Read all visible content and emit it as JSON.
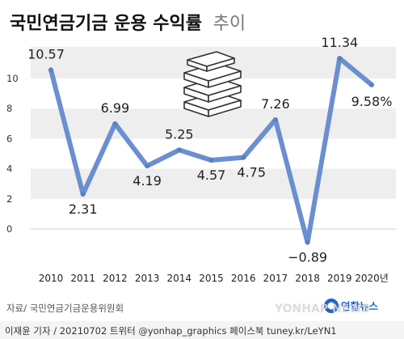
{
  "title_main": "국민연금기금 운용 수익률",
  "title_suffix": "추이",
  "source": "자료/ 국민연금기금운용위원회",
  "credit": "이재윤 기자 / 20210702  트위터 @yonhap_graphics  페이스북 tuney.kr/LeYN1",
  "watermark": "YONHAP NEWS",
  "logo_text": "연합뉴스",
  "colors": {
    "line": "#6b8fd0",
    "marker": "#5a7fc4",
    "band": "#eeeeee",
    "title": "#111111",
    "suffix": "#777777"
  },
  "chart_data": {
    "type": "line",
    "title": "국민연금기금 운용 수익률 추이",
    "categories": [
      "2010",
      "2011",
      "2012",
      "2013",
      "2014",
      "2015",
      "2016",
      "2017",
      "2018",
      "2019",
      "2020년"
    ],
    "series": [
      {
        "values": [
          10.57,
          2.31,
          6.99,
          4.19,
          5.25,
          4.57,
          4.75,
          7.26,
          -0.89,
          11.34,
          9.58
        ],
        "labels": [
          "10.57",
          "2.31",
          "6.99",
          "4.19",
          "5.25",
          "4.57",
          "4.75",
          "7.26",
          "−0.89",
          "11.34",
          "9.58%"
        ]
      }
    ],
    "yticks": [
      0,
      2,
      4,
      6,
      8,
      10
    ],
    "ylim": [
      -1.5,
      12
    ],
    "grid": "alternating-bands"
  }
}
